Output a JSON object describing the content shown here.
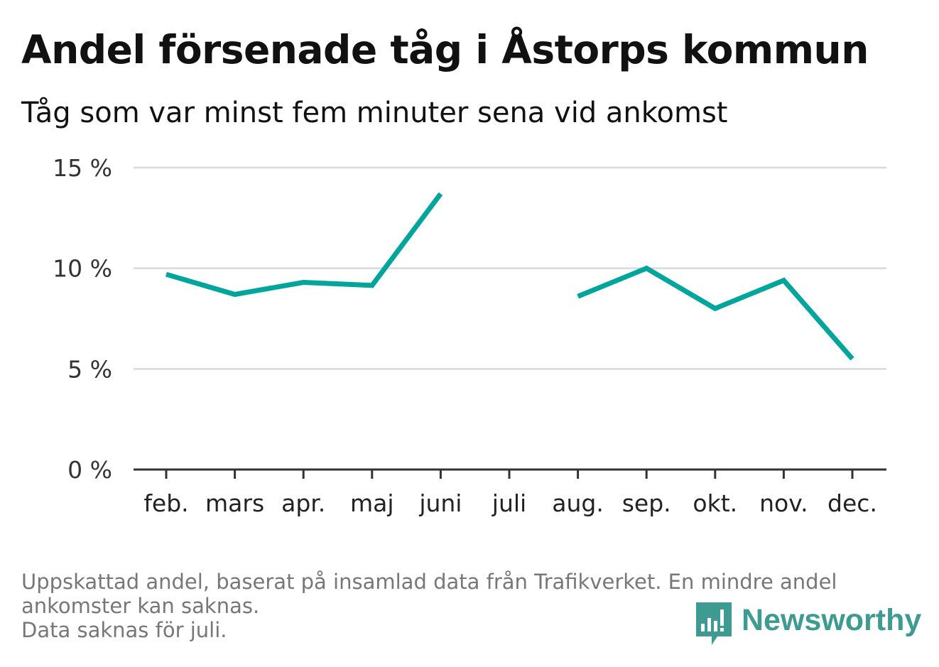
{
  "title": "Andel försenade tåg i Åstorps kommun",
  "subtitle": "Tåg som var minst fem minuter sena vid ankomst",
  "footnote": {
    "line1": "Uppskattad andel, baserat på insamlad data från Trafikverket. En mindre andel",
    "line2": "ankomster kan saknas.",
    "line3": "Data saknas för juli."
  },
  "brand": {
    "name": "Newsworthy",
    "icon": "newsworthy-logo-icon"
  },
  "colors": {
    "line": "#00a59b",
    "grid": "#d9d9d9",
    "axis": "#333333",
    "brand": "#3d9b91",
    "note": "#777777"
  },
  "chart_data": {
    "type": "line",
    "title": "Andel försenade tåg i Åstorps kommun",
    "subtitle": "Tåg som var minst fem minuter sena vid ankomst",
    "categories": [
      "feb.",
      "mars",
      "apr.",
      "maj",
      "juni",
      "juli",
      "aug.",
      "sep.",
      "okt.",
      "nov.",
      "dec."
    ],
    "series": [
      {
        "values": [
          9.7,
          8.7,
          9.3,
          9.15,
          13.7,
          null,
          8.6,
          10.0,
          8.0,
          9.4,
          5.5
        ]
      }
    ],
    "y_ticks": [
      0,
      5,
      10,
      15
    ],
    "y_tick_labels": [
      "0 %",
      "5 %",
      "10 %",
      "15 %"
    ],
    "ylim": [
      0,
      15
    ],
    "grid": true,
    "legend": "none",
    "xlabel": "",
    "ylabel": ""
  }
}
